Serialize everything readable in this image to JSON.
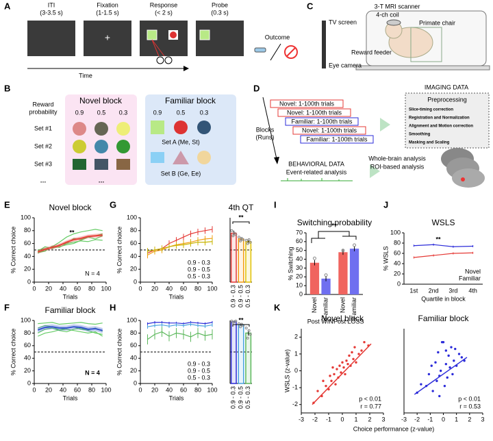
{
  "panel_labels": [
    "A",
    "B",
    "C",
    "D",
    "E",
    "F",
    "G",
    "H",
    "I",
    "J",
    "K"
  ],
  "task": {
    "stages": [
      {
        "name": "ITI",
        "duration": "(3-3.5 s)"
      },
      {
        "name": "Fixation",
        "duration": "(1-1.5 s)"
      },
      {
        "name": "Response",
        "duration": "(< 2 s)"
      },
      {
        "name": "Probe",
        "duration": "(0.3 s)"
      }
    ],
    "fixation_mark": "+",
    "outcome": "Outcome",
    "time": "Time"
  },
  "stimuli": {
    "reward_probability": [
      "Reward",
      "probability"
    ],
    "novel": {
      "title": "Novel block",
      "probs": [
        "0.9",
        "0.5",
        "0.3"
      ],
      "sets": [
        "Set #1",
        "Set #2",
        "Set #3"
      ],
      "more": "…"
    },
    "familiar": {
      "title": "Familiar block",
      "probs": [
        "0.9",
        "0.5",
        "0.3"
      ],
      "sets": [
        "Set A (Me, St)",
        "Set B (Ge, Ee)"
      ]
    }
  },
  "setup": {
    "scanner": "3-T MRI scanner",
    "labels": [
      "TV screen",
      "4-ch coil",
      "Primate chair",
      "Reward feeder",
      "Eye camera"
    ]
  },
  "design": {
    "runs": [
      {
        "label": "Novel: 1-100th trials",
        "color": "#e53935"
      },
      {
        "label": "Novel: 1-100th trials",
        "color": "#e53935"
      },
      {
        "label": "Familiar: 1-100th trials",
        "color": "#2b2bd9"
      },
      {
        "label": "Novel: 1-100th trials",
        "color": "#e53935"
      },
      {
        "label": "Familiar: 1-100th trials",
        "color": "#2b2bd9"
      }
    ],
    "blocks": [
      "Blocks",
      "(Runs)"
    ],
    "behavioral": {
      "title": "BEHAVIORAL DATA",
      "item": "Event-related analysis"
    },
    "imaging": {
      "title": "IMAGING DATA",
      "preprocessing": "Preprocessing",
      "steps": [
        "Slice-timing correction",
        "Registration and Normalization",
        "Alignment and Motion correction",
        "Smoothing",
        "Masking and Scaling"
      ],
      "analyses": [
        "Whole-brain analysis",
        "ROI-based analysis"
      ]
    }
  },
  "chart_data": [
    {
      "type": "line",
      "title": "Novel block",
      "xlabel": "Trials",
      "ylabel": "% Correct choice",
      "x": [
        5,
        15,
        25,
        35,
        45,
        55,
        65,
        75,
        85,
        95
      ],
      "xlim": [
        0,
        100
      ],
      "xticks": [
        0,
        20,
        40,
        60,
        80,
        100
      ],
      "ylim": [
        0,
        100
      ],
      "yticks": [
        0,
        20,
        40,
        60,
        80,
        100
      ],
      "reference": 50,
      "annotations": [
        "**",
        "N = 4"
      ],
      "series": [
        {
          "color": "#66cc66",
          "values": [
            45,
            50,
            55,
            62,
            70,
            75,
            78,
            80,
            82,
            80
          ]
        },
        {
          "color": "#66cc66",
          "values": [
            50,
            52,
            53,
            55,
            58,
            60,
            65,
            70,
            72,
            75
          ]
        },
        {
          "color": "#66cc66",
          "values": [
            48,
            55,
            52,
            58,
            60,
            68,
            66,
            70,
            67,
            72
          ]
        },
        {
          "color": "#66cc66",
          "values": [
            46,
            48,
            56,
            54,
            60,
            62,
            64,
            63,
            66,
            65
          ]
        },
        {
          "color": "#e8403a",
          "values": [
            47,
            51,
            54,
            57,
            62,
            66,
            68,
            71,
            72,
            73
          ],
          "band": [
            3,
            3,
            3,
            3,
            3,
            3,
            3,
            3,
            3,
            3
          ]
        }
      ]
    },
    {
      "type": "line",
      "xlabel": "Trials",
      "ylabel": "% Correct choice",
      "x": [
        10,
        20,
        30,
        40,
        50,
        60,
        70,
        80,
        90,
        100
      ],
      "xlim": [
        0,
        100
      ],
      "xticks": [
        0,
        20,
        40,
        60,
        80,
        100
      ],
      "ylim": [
        0,
        100
      ],
      "yticks": [
        0,
        20,
        40,
        60,
        80,
        100
      ],
      "reference": 50,
      "legend": "lower right",
      "series": [
        {
          "name": "0.9 - 0.3",
          "color": "#e53935",
          "values": [
            45,
            50,
            52,
            60,
            65,
            70,
            75,
            78,
            80,
            82
          ],
          "errors": [
            6,
            5,
            5,
            5,
            5,
            5,
            5,
            5,
            5,
            5
          ]
        },
        {
          "name": "0.9 - 0.5",
          "color": "#f39c12",
          "values": [
            42,
            48,
            50,
            55,
            58,
            60,
            62,
            65,
            67,
            68
          ],
          "errors": [
            5,
            5,
            5,
            5,
            5,
            5,
            5,
            5,
            5,
            5
          ]
        },
        {
          "name": "0.5 - 0.3",
          "color": "#c8b400",
          "values": [
            48,
            50,
            52,
            55,
            57,
            58,
            60,
            62,
            62,
            63
          ],
          "errors": [
            5,
            5,
            5,
            5,
            5,
            5,
            5,
            5,
            5,
            5
          ]
        }
      ]
    },
    {
      "type": "bar",
      "title": "4th QT",
      "categories": [
        "0.9 - 0.3",
        "0.9 - 0.5",
        "0.5 - 0.3"
      ],
      "values": [
        76,
        67,
        63
      ],
      "errors": [
        4,
        3,
        3
      ],
      "points": [
        [
          80,
          72,
          76,
          74
        ],
        [
          70,
          64,
          68,
          66
        ],
        [
          65,
          60,
          66,
          62
        ]
      ],
      "colors": [
        "#e53935",
        "#f39c12",
        "#e0c000"
      ],
      "ylim": [
        0,
        100
      ],
      "reference": 50,
      "annotations": [
        "**"
      ]
    },
    {
      "type": "grouped_bar",
      "title": "Switching probability",
      "ylabel": "% Switching",
      "groups": [
        "Post WIN",
        "Post LOSS"
      ],
      "ylim": [
        0,
        70
      ],
      "yticks": [
        0,
        10,
        20,
        30,
        40,
        50,
        60,
        70
      ],
      "annotations": [
        "**"
      ],
      "series": [
        {
          "name": "Novel",
          "color": "#f0645f",
          "values": [
            36,
            48
          ],
          "errors": [
            3,
            3
          ],
          "points": [
            41,
            50
          ]
        },
        {
          "name": "Familiar",
          "color": "#6f6ff0",
          "values": [
            18,
            52
          ],
          "errors": [
            3,
            3
          ],
          "points": [
            22,
            56
          ]
        }
      ]
    },
    {
      "type": "line",
      "title": "WSLS",
      "xlabel": "Quartile in block",
      "ylabel": "% WSLS",
      "categories": [
        "1st",
        "2nd",
        "3rd",
        "4th"
      ],
      "ylim": [
        0,
        100
      ],
      "yticks": [
        0,
        20,
        40,
        60,
        80,
        100
      ],
      "legend": "lower right",
      "annotations": [
        "**"
      ],
      "series": [
        {
          "name": "Novel",
          "color": "#e53935",
          "values": [
            52,
            56,
            60,
            61
          ],
          "errors": [
            2,
            2,
            2,
            2
          ]
        },
        {
          "name": "Familiar",
          "color": "#2b2bd9",
          "values": [
            75,
            77,
            73,
            74
          ],
          "errors": [
            2,
            2,
            2,
            2
          ]
        }
      ]
    },
    {
      "type": "line",
      "title": "Familiar block",
      "xlabel": "Trials",
      "ylabel": "% Correct choice",
      "x": [
        5,
        15,
        25,
        35,
        45,
        55,
        65,
        75,
        85,
        95
      ],
      "xlim": [
        0,
        100
      ],
      "xticks": [
        0,
        20,
        40,
        60,
        80,
        100
      ],
      "ylim": [
        0,
        100
      ],
      "yticks": [
        0,
        20,
        40,
        60,
        80,
        100
      ],
      "reference": 50,
      "annotations": [
        "N = 4"
      ],
      "series": [
        {
          "color": "#66cc66",
          "values": [
            95,
            96,
            97,
            94,
            95,
            96,
            97,
            95,
            94,
            96
          ]
        },
        {
          "color": "#66cc66",
          "values": [
            88,
            92,
            90,
            85,
            88,
            90,
            86,
            85,
            88,
            83
          ]
        },
        {
          "color": "#66cc66",
          "values": [
            80,
            86,
            88,
            84,
            82,
            86,
            88,
            84,
            80,
            78
          ]
        },
        {
          "color": "#66cc66",
          "values": [
            75,
            80,
            82,
            85,
            86,
            84,
            82,
            80,
            82,
            75
          ]
        },
        {
          "color": "#3355cc",
          "values": [
            85,
            89,
            90,
            88,
            88,
            90,
            89,
            86,
            87,
            84
          ],
          "band": [
            4,
            4,
            4,
            4,
            4,
            4,
            4,
            4,
            4,
            4
          ]
        }
      ]
    },
    {
      "type": "line",
      "xlabel": "Trials",
      "ylabel": "% Correct choice",
      "x": [
        10,
        20,
        30,
        40,
        50,
        60,
        70,
        80,
        90,
        100
      ],
      "xlim": [
        0,
        100
      ],
      "xticks": [
        0,
        20,
        40,
        60,
        80,
        100
      ],
      "ylim": [
        0,
        100
      ],
      "yticks": [
        0,
        20,
        40,
        60,
        80,
        100
      ],
      "reference": 50,
      "legend": "lower right",
      "series": [
        {
          "name": "0.9 - 0.3",
          "color": "#2b2bd9",
          "values": [
            95,
            97,
            97,
            96,
            96,
            95,
            97,
            96,
            95,
            97
          ],
          "errors": [
            2,
            2,
            2,
            2,
            2,
            2,
            2,
            2,
            2,
            2
          ]
        },
        {
          "name": "0.9 - 0.5",
          "color": "#4aa3df",
          "values": [
            90,
            92,
            93,
            91,
            93,
            92,
            94,
            92,
            91,
            93
          ],
          "errors": [
            3,
            3,
            3,
            3,
            3,
            3,
            3,
            3,
            3,
            3
          ]
        },
        {
          "name": "0.5 - 0.3",
          "color": "#5cb85c",
          "values": [
            70,
            78,
            82,
            75,
            80,
            78,
            74,
            80,
            76,
            78
          ],
          "errors": [
            8,
            8,
            8,
            8,
            8,
            8,
            8,
            8,
            8,
            8
          ]
        }
      ]
    },
    {
      "type": "bar",
      "categories": [
        "0.9 - 0.3",
        "0.9 - 0.5",
        "0.5 - 0.3"
      ],
      "values": [
        98,
        93,
        80
      ],
      "errors": [
        1,
        2,
        4
      ],
      "points": [
        [
          99,
          97,
          98,
          99
        ],
        [
          95,
          90,
          94,
          92
        ],
        [
          88,
          72,
          84,
          78
        ]
      ],
      "colors": [
        "#2b2bd9",
        "#4aa3df",
        "#5cb85c"
      ],
      "ylim": [
        0,
        100
      ],
      "reference": 50,
      "annotations": [
        "**"
      ]
    },
    {
      "type": "scatter",
      "title": "Novel block",
      "xlabel": "Choice performance (z-value)",
      "ylabel": "WSLS (z-value)",
      "xlim": [
        -3,
        3
      ],
      "xticks": [
        -3,
        -2,
        -1,
        0,
        1,
        2,
        3
      ],
      "ylim": [
        -2.5,
        2.5
      ],
      "yticks": [
        -2,
        -1,
        0,
        1,
        2
      ],
      "annotations": [
        "p < 0.01",
        "r = 0.77"
      ],
      "annotation_color": "#e53935",
      "series": [
        {
          "color": "#e53935",
          "x": [
            -2.1,
            -1.8,
            -1.5,
            -1.4,
            -1.2,
            -1.0,
            -0.9,
            -0.8,
            -0.6,
            -0.5,
            -0.4,
            -0.3,
            -0.2,
            -0.1,
            0,
            0.1,
            0.2,
            0.3,
            0.4,
            0.5,
            0.6,
            0.7,
            0.8,
            0.9,
            1.0,
            1.2,
            1.4,
            1.6,
            1.9,
            -0.7
          ],
          "values": [
            -1.9,
            -1.2,
            -1.5,
            -0.6,
            -0.9,
            -1.1,
            -0.3,
            -0.6,
            -0.2,
            -0.8,
            0.1,
            -0.4,
            0.3,
            -0.1,
            0.5,
            0.2,
            -0.2,
            0.6,
            0.4,
            0.9,
            0.3,
            1.1,
            0.7,
            1.4,
            0.5,
            1.0,
            1.2,
            1.7,
            1.5,
            0.2
          ]
        }
      ],
      "fit": {
        "x": [
          -2.2,
          2.1
        ],
        "values": [
          -2.0,
          1.6
        ]
      }
    },
    {
      "type": "scatter",
      "title": "Familiar block",
      "xlim": [
        -3,
        3
      ],
      "xticks": [
        -3,
        -2,
        -1,
        0,
        1,
        2,
        3
      ],
      "ylim": [
        -2.5,
        2.5
      ],
      "annotations": [
        "p < 0.01",
        "r = 0.53"
      ],
      "annotation_color": "#2b2bd9",
      "series": [
        {
          "color": "#2b2bd9",
          "x": [
            -2.0,
            -1.7,
            -1.3,
            -1.1,
            -0.9,
            -0.8,
            -0.6,
            -0.5,
            -0.4,
            -0.3,
            -0.2,
            -0.1,
            0,
            0.1,
            0.2,
            0.3,
            0.4,
            0.5,
            0.6,
            0.7,
            0.8,
            1.0,
            1.2,
            1.4,
            1.6,
            -0.3,
            0.2,
            0.9
          ],
          "values": [
            -1.3,
            -0.8,
            -0.9,
            -0.2,
            0.3,
            -1.2,
            0.5,
            -0.6,
            1.1,
            -0.3,
            0.0,
            1.7,
            1.7,
            -0.9,
            0.4,
            -0.4,
            0.9,
            0.2,
            1.4,
            -0.2,
            0.6,
            0.3,
            1.0,
            0.8,
            0.6,
            -1.5,
            1.2,
            1.3
          ]
        }
      ],
      "fit": {
        "x": [
          -2.2,
          1.8
        ],
        "values": [
          -1.4,
          0.8
        ]
      }
    }
  ]
}
